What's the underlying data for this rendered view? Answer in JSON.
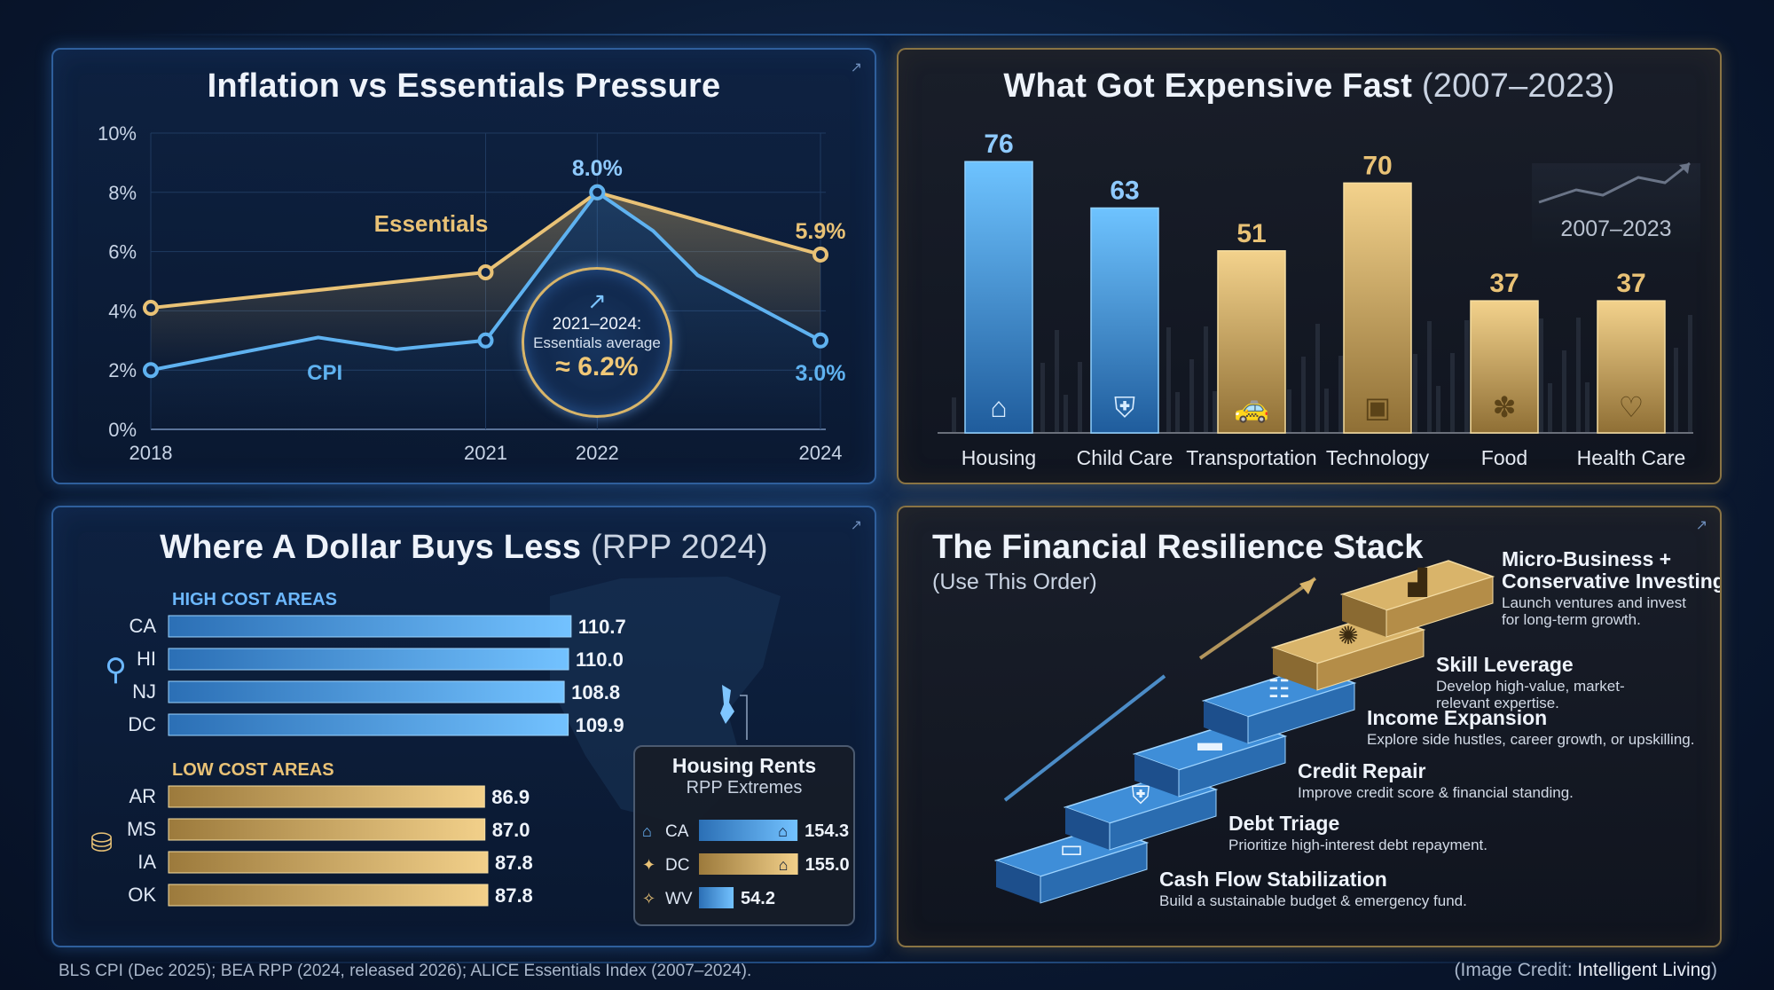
{
  "line_chart": {
    "title": "Inflation vs Essentials Pressure",
    "y_ticks": [
      "10%",
      "8%",
      "6%",
      "4%",
      "2%",
      "0%"
    ],
    "x_ticks": [
      "2018",
      "2021",
      "2022",
      "2024"
    ],
    "essentials_label": "Essentials",
    "cpi_label": "CPI",
    "label_peak": "8.0%",
    "label_ess_end": "5.9%",
    "label_cpi_end": "3.0%",
    "badge": {
      "line1": "2021–2024:",
      "line2": "Essentials average",
      "value": "≈ 6.2%"
    }
  },
  "bar_chart": {
    "title_bold": "What Got Expensive Fast",
    "title_light": "(2007–2023)",
    "badge": "2007–2023"
  },
  "rpp": {
    "title_bold": "Where A Dollar Buys Less",
    "title_light": "(RPP 2024)",
    "high_label": "HIGH COST AREAS",
    "low_label": "LOW COST AREAS",
    "housing_title": "Housing Rents",
    "housing_subtitle": "RPP Extremes"
  },
  "stack": {
    "title": "The Financial Resilience Stack",
    "subtitle": "(Use This Order)",
    "steps": [
      {
        "title": "Cash Flow Stabilization",
        "desc": "Build a sustainable budget & emergency fund.",
        "icon": "wallet-icon"
      },
      {
        "title": "Debt Triage",
        "desc": "Prioritize high-interest debt repayment.",
        "icon": "shield-icon"
      },
      {
        "title": "Credit Repair",
        "desc": "Improve credit score & financial standing.",
        "icon": "credit-card-icon"
      },
      {
        "title": "Income Expansion",
        "desc": "Explore side hustles, career growth, or upskilling.",
        "icon": "ladder-icon"
      },
      {
        "title": "Skill Leverage",
        "desc": "Develop high-value, market-",
        "desc2": "relevant expertise.",
        "icon": "brain-icon"
      },
      {
        "title": "Micro-Business +",
        "title2": "Conservative Investing",
        "desc": "Launch ventures and invest",
        "desc2": "for long-term growth.",
        "icon": "growth-chart-icon"
      }
    ]
  },
  "footer": {
    "sources": "BLS CPI (Dec 2025); BEA RPP (2024, released 2026); ALICE Essentials Index (2007–2024).",
    "credit_prefix": "(Image Credit: ",
    "credit_name": "Intelligent Living",
    "credit_suffix": ")"
  },
  "colors": {
    "blue": "#5fb2f0",
    "gold": "#e9c276",
    "panel_blue_border": "#2f5f9c",
    "panel_gold_border": "#8a7444"
  },
  "chart_data": [
    {
      "type": "line",
      "title": "Inflation vs Essentials Pressure",
      "ylim": [
        0,
        10
      ],
      "y_unit": "%",
      "series": [
        {
          "name": "Essentials",
          "x": [
            2018,
            2021,
            2022,
            2024
          ],
          "values": [
            4.1,
            5.3,
            8.0,
            5.9
          ]
        },
        {
          "name": "CPI",
          "x": [
            2018,
            2019.5,
            2020.2,
            2021,
            2022,
            2022.5,
            2022.9,
            2024
          ],
          "values": [
            2.0,
            3.1,
            2.7,
            3.0,
            8.0,
            6.7,
            5.2,
            3.0
          ]
        }
      ],
      "annotation": "2021–2024: Essentials average ≈ 6.2%",
      "grid": true
    },
    {
      "type": "bar",
      "title": "What Got Expensive Fast (2007–2023)",
      "categories": [
        "Housing",
        "Child Care",
        "Transportation",
        "Technology",
        "Food",
        "Health Care"
      ],
      "values": [
        76,
        63,
        51,
        70,
        37,
        37
      ],
      "icons": [
        "house-icon",
        "shield-heart-icon",
        "car-icon",
        "chip-icon",
        "wheat-icon",
        "heartbeat-icon"
      ],
      "bar_colors": [
        "blue",
        "blue",
        "gold",
        "gold",
        "gold",
        "gold"
      ],
      "ylim": [
        0,
        85
      ]
    },
    {
      "type": "bar",
      "orientation": "horizontal",
      "title": "Where A Dollar Buys Less (RPP 2024)",
      "groups": [
        {
          "label": "HIGH COST AREAS",
          "categories": [
            "CA",
            "HI",
            "NJ",
            "DC"
          ],
          "values": [
            110.7,
            110.0,
            108.8,
            109.9
          ],
          "color": "blue"
        },
        {
          "label": "LOW COST AREAS",
          "categories": [
            "AR",
            "MS",
            "IA",
            "OK"
          ],
          "values": [
            86.9,
            87.0,
            87.8,
            87.8
          ],
          "color": "gold"
        }
      ]
    },
    {
      "type": "bar",
      "orientation": "horizontal",
      "title": "Housing Rents",
      "subtitle": "RPP Extremes",
      "categories": [
        "CA",
        "DC",
        "WV"
      ],
      "values": [
        154.3,
        155.0,
        54.2
      ]
    }
  ]
}
